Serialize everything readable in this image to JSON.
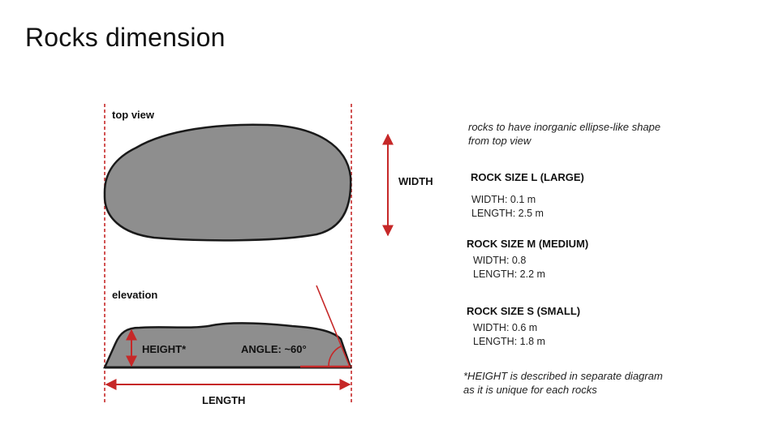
{
  "slide": {
    "title": "Rocks dimension"
  },
  "diagram": {
    "top_view_label": "top view",
    "elevation_label": "elevation",
    "width_label": "WIDTH",
    "height_label": "HEIGHT*",
    "angle_label": "ANGLE: ~60°",
    "length_label": "LENGTH",
    "colors": {
      "rock_fill": "#8e8e8e",
      "rock_outline": "#1a1a1a",
      "dimension_red": "#c62828"
    }
  },
  "notes": {
    "shape_note": "rocks to have inorganic ellipse-like shape from top view",
    "height_note": "*HEIGHT is described in separate diagram as it is unique for each rocks"
  },
  "sizes": [
    {
      "title": "ROCK SIZE L (LARGE)",
      "width": "WIDTH: 0.1 m",
      "length": "LENGTH: 2.5 m"
    },
    {
      "title": "ROCK SIZE M (MEDIUM)",
      "width": "WIDTH: 0.8",
      "length": "LENGTH: 2.2 m"
    },
    {
      "title": "ROCK SIZE S (SMALL)",
      "width": "WIDTH: 0.6 m",
      "length": "LENGTH: 1.8 m"
    }
  ]
}
